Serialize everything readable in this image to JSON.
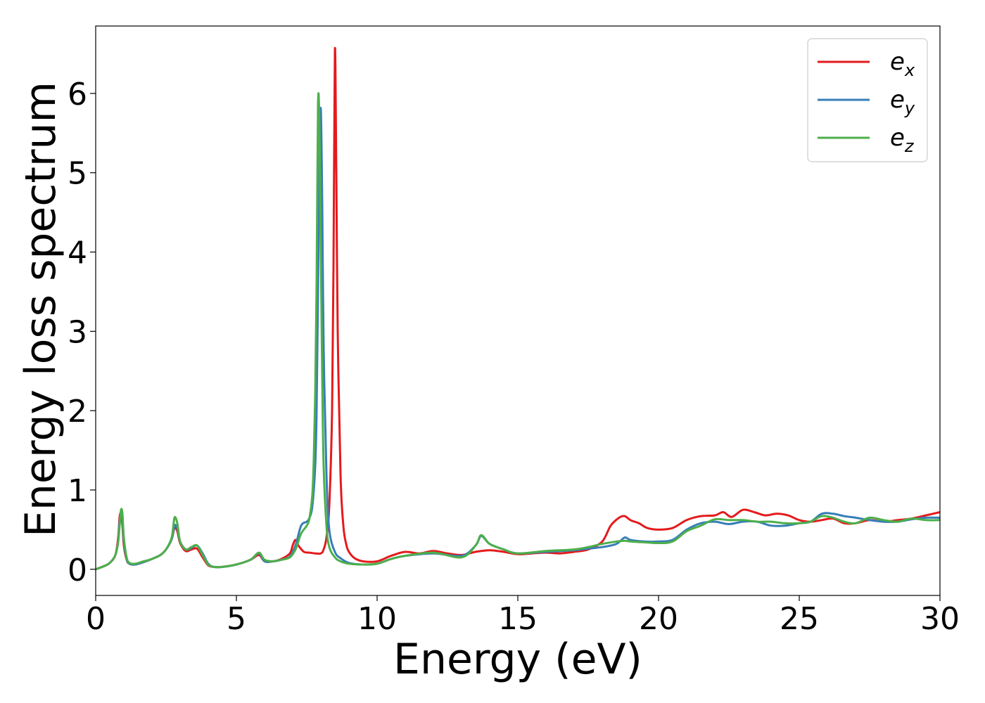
{
  "chart_data": {
    "type": "line",
    "xlabel": "Energy (eV)",
    "ylabel": "Energy loss spectrum",
    "xlim": [
      0,
      30
    ],
    "ylim": [
      -0.33,
      6.85
    ],
    "xticks": [
      0,
      5,
      10,
      15,
      20,
      25,
      30
    ],
    "xtick_labels": [
      "0",
      "5",
      "10",
      "15",
      "20",
      "25",
      "30"
    ],
    "yticks": [
      0,
      1,
      2,
      3,
      4,
      5,
      6
    ],
    "ytick_labels": [
      "0",
      "1",
      "2",
      "3",
      "4",
      "5",
      "6"
    ],
    "grid": false,
    "legend_position": "top-right",
    "series": [
      {
        "name": "e_x",
        "label_base": "e",
        "label_sub": "x",
        "color": "#e41a1c",
        "x": [
          0,
          0.3,
          0.5,
          0.7,
          0.8,
          0.85,
          0.9,
          0.95,
          1.0,
          1.1,
          1.2,
          1.4,
          1.7,
          2.0,
          2.3,
          2.5,
          2.7,
          2.8,
          2.9,
          3.0,
          3.2,
          3.4,
          3.6,
          3.8,
          4.0,
          4.2,
          4.5,
          5.0,
          5.5,
          5.8,
          6.0,
          6.3,
          6.6,
          6.9,
          7.0,
          7.1,
          7.2,
          7.4,
          7.6,
          7.8,
          8.0,
          8.1,
          8.2,
          8.3,
          8.4,
          8.45,
          8.5,
          8.55,
          8.6,
          8.7,
          8.8,
          8.9,
          9.0,
          9.2,
          9.5,
          10.0,
          10.5,
          11.0,
          11.5,
          12.0,
          12.5,
          13.0,
          13.5,
          14.0,
          14.5,
          15.0,
          15.5,
          16.0,
          16.5,
          17.0,
          17.5,
          18.0,
          18.3,
          18.6,
          18.8,
          19.0,
          19.3,
          19.6,
          20.0,
          20.5,
          21.0,
          21.5,
          22.0,
          22.3,
          22.6,
          23.0,
          23.4,
          23.8,
          24.2,
          24.6,
          25.0,
          25.4,
          25.8,
          26.2,
          26.6,
          27.0,
          27.5,
          28.0,
          28.5,
          29.0,
          29.5,
          30.0
        ],
        "y": [
          0,
          0.04,
          0.08,
          0.18,
          0.4,
          0.66,
          0.7,
          0.55,
          0.3,
          0.12,
          0.07,
          0.06,
          0.09,
          0.13,
          0.18,
          0.25,
          0.38,
          0.52,
          0.48,
          0.33,
          0.23,
          0.25,
          0.26,
          0.15,
          0.05,
          0.03,
          0.03,
          0.06,
          0.12,
          0.18,
          0.1,
          0.1,
          0.13,
          0.2,
          0.3,
          0.37,
          0.3,
          0.22,
          0.21,
          0.2,
          0.2,
          0.25,
          0.4,
          0.8,
          2.0,
          3.8,
          6.55,
          5.0,
          3.0,
          1.2,
          0.55,
          0.32,
          0.22,
          0.14,
          0.1,
          0.1,
          0.17,
          0.22,
          0.2,
          0.23,
          0.2,
          0.18,
          0.22,
          0.24,
          0.22,
          0.19,
          0.2,
          0.21,
          0.2,
          0.22,
          0.25,
          0.35,
          0.55,
          0.65,
          0.67,
          0.62,
          0.58,
          0.52,
          0.5,
          0.52,
          0.62,
          0.67,
          0.68,
          0.72,
          0.66,
          0.75,
          0.72,
          0.68,
          0.7,
          0.68,
          0.62,
          0.6,
          0.62,
          0.64,
          0.58,
          0.58,
          0.62,
          0.6,
          0.62,
          0.64,
          0.68,
          0.72
        ]
      },
      {
        "name": "e_y",
        "label_base": "e",
        "label_sub": "y",
        "color": "#377eb8",
        "x": [
          0,
          0.3,
          0.5,
          0.7,
          0.8,
          0.85,
          0.9,
          0.95,
          1.0,
          1.1,
          1.2,
          1.4,
          1.7,
          2.0,
          2.3,
          2.5,
          2.7,
          2.8,
          2.9,
          3.0,
          3.2,
          3.4,
          3.6,
          3.8,
          4.0,
          4.2,
          4.5,
          5.0,
          5.5,
          5.8,
          6.0,
          6.3,
          6.6,
          6.9,
          7.1,
          7.3,
          7.5,
          7.6,
          7.7,
          7.8,
          7.85,
          7.9,
          7.95,
          8.0,
          8.05,
          8.1,
          8.2,
          8.3,
          8.5,
          8.7,
          9.0,
          9.5,
          10.0,
          10.5,
          11.0,
          12.0,
          13.0,
          13.5,
          13.7,
          14.0,
          14.5,
          15.0,
          16.0,
          17.0,
          17.5,
          18.0,
          18.5,
          18.8,
          19.0,
          19.5,
          20.0,
          20.5,
          21.0,
          21.5,
          22.0,
          22.5,
          23.0,
          23.5,
          24.0,
          24.5,
          25.0,
          25.4,
          25.8,
          26.2,
          26.6,
          27.0,
          27.5,
          28.0,
          28.5,
          29.0,
          29.5,
          30.0
        ],
        "y": [
          0,
          0.04,
          0.08,
          0.18,
          0.35,
          0.6,
          0.68,
          0.6,
          0.35,
          0.13,
          0.07,
          0.06,
          0.09,
          0.13,
          0.18,
          0.25,
          0.38,
          0.55,
          0.52,
          0.35,
          0.25,
          0.27,
          0.3,
          0.2,
          0.07,
          0.03,
          0.03,
          0.06,
          0.12,
          0.2,
          0.1,
          0.1,
          0.12,
          0.16,
          0.3,
          0.55,
          0.6,
          0.65,
          0.8,
          1.3,
          2.0,
          3.5,
          5.2,
          5.8,
          4.6,
          2.8,
          1.2,
          0.5,
          0.22,
          0.14,
          0.08,
          0.06,
          0.07,
          0.13,
          0.17,
          0.2,
          0.17,
          0.3,
          0.42,
          0.32,
          0.25,
          0.2,
          0.22,
          0.24,
          0.26,
          0.28,
          0.32,
          0.4,
          0.37,
          0.35,
          0.35,
          0.37,
          0.5,
          0.58,
          0.6,
          0.57,
          0.6,
          0.6,
          0.55,
          0.55,
          0.58,
          0.6,
          0.7,
          0.7,
          0.67,
          0.65,
          0.62,
          0.6,
          0.6,
          0.63,
          0.65,
          0.65
        ]
      },
      {
        "name": "e_z",
        "label_base": "e",
        "label_sub": "z",
        "color": "#4daf4a",
        "x": [
          0,
          0.3,
          0.5,
          0.7,
          0.8,
          0.85,
          0.9,
          0.95,
          1.0,
          1.1,
          1.2,
          1.4,
          1.7,
          2.0,
          2.3,
          2.5,
          2.7,
          2.8,
          2.9,
          3.0,
          3.2,
          3.4,
          3.6,
          3.8,
          4.0,
          4.2,
          4.5,
          5.0,
          5.5,
          5.8,
          6.0,
          6.3,
          6.6,
          6.9,
          7.1,
          7.3,
          7.5,
          7.6,
          7.7,
          7.75,
          7.8,
          7.85,
          7.9,
          7.95,
          8.0,
          8.05,
          8.1,
          8.2,
          8.3,
          8.5,
          8.7,
          9.0,
          9.5,
          10.0,
          10.5,
          11.0,
          12.0,
          13.0,
          13.5,
          13.7,
          14.0,
          14.5,
          15.0,
          16.0,
          17.0,
          17.5,
          18.0,
          18.5,
          18.8,
          19.0,
          19.5,
          20.0,
          20.5,
          21.0,
          21.5,
          22.0,
          22.5,
          23.0,
          23.5,
          24.0,
          24.5,
          25.0,
          25.4,
          25.8,
          26.2,
          26.6,
          27.0,
          27.5,
          28.0,
          28.5,
          29.0,
          29.5,
          30.0
        ],
        "y": [
          0,
          0.04,
          0.08,
          0.18,
          0.35,
          0.55,
          0.75,
          0.7,
          0.4,
          0.15,
          0.08,
          0.07,
          0.1,
          0.13,
          0.18,
          0.25,
          0.4,
          0.65,
          0.58,
          0.35,
          0.25,
          0.28,
          0.3,
          0.18,
          0.06,
          0.03,
          0.03,
          0.06,
          0.12,
          0.21,
          0.12,
          0.1,
          0.12,
          0.15,
          0.25,
          0.45,
          0.55,
          0.65,
          0.95,
          1.4,
          2.2,
          3.6,
          5.85,
          5.6,
          4.0,
          2.4,
          1.3,
          0.55,
          0.28,
          0.15,
          0.1,
          0.07,
          0.06,
          0.07,
          0.13,
          0.17,
          0.21,
          0.15,
          0.3,
          0.43,
          0.32,
          0.25,
          0.2,
          0.23,
          0.25,
          0.28,
          0.32,
          0.35,
          0.36,
          0.35,
          0.34,
          0.33,
          0.35,
          0.48,
          0.55,
          0.63,
          0.62,
          0.62,
          0.6,
          0.6,
          0.58,
          0.58,
          0.6,
          0.67,
          0.65,
          0.6,
          0.58,
          0.65,
          0.62,
          0.6,
          0.64,
          0.62,
          0.62
        ]
      }
    ]
  }
}
